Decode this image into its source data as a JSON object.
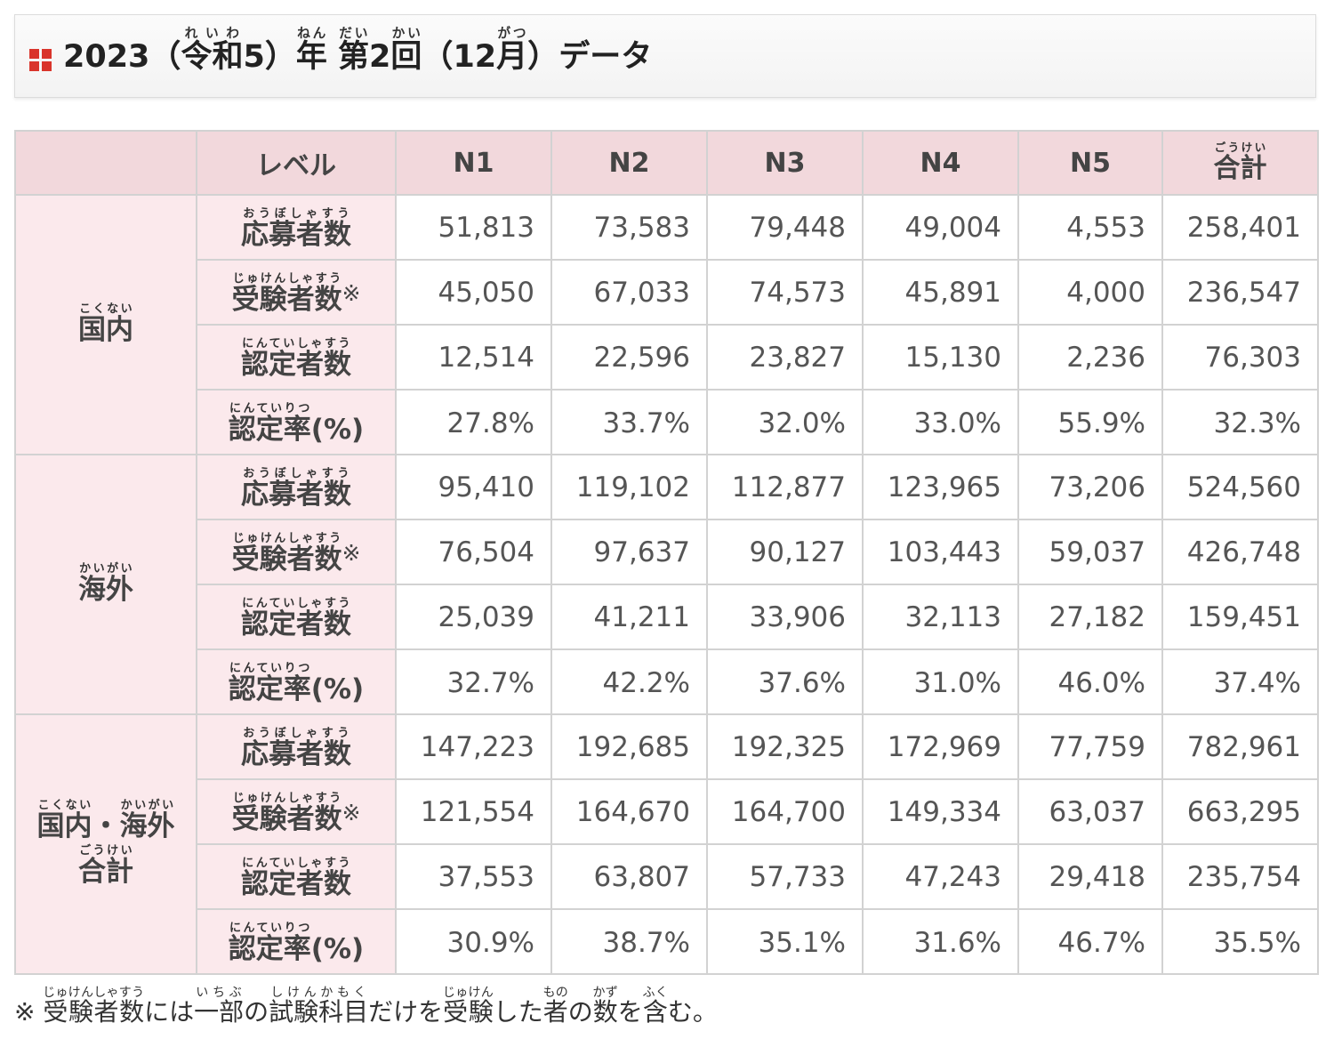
{
  "title": {
    "year": "2023",
    "era_open": "（",
    "era_name": "令和",
    "era_name_ruby": "れいわ",
    "era_num": "5",
    "era_close": "）",
    "nen": "年",
    "nen_ruby": "ねん",
    "space": " ",
    "dai": "第",
    "dai_ruby": "だい",
    "session_num": "2",
    "kai": "回",
    "kai_ruby": "かい",
    "month_open": "（",
    "month_num": "12",
    "month": "月",
    "month_ruby": "がつ",
    "month_close": "）",
    "suffix": "データ"
  },
  "header": {
    "level_label": "レベル",
    "levels": [
      "N1",
      "N2",
      "N3",
      "N4",
      "N5"
    ],
    "total_label": "合計",
    "total_ruby": "ごうけい"
  },
  "metrics": {
    "applicants": {
      "label": "応募者数",
      "ruby": "おうぼしゃすう"
    },
    "examinees": {
      "label": "受験者数",
      "ruby": "じゅけんしゃすう",
      "mark": "※"
    },
    "certified": {
      "label": "認定者数",
      "ruby": "にんていしゃすう"
    },
    "rate": {
      "label": "認定率",
      "ruby": "にんていりつ",
      "suffix": "(%)"
    }
  },
  "regions": [
    {
      "label": "国内",
      "ruby": "こくない",
      "rows": {
        "applicants": [
          "51,813",
          "73,583",
          "79,448",
          "49,004",
          "4,553",
          "258,401"
        ],
        "examinees": [
          "45,050",
          "67,033",
          "74,573",
          "45,891",
          "4,000",
          "236,547"
        ],
        "certified": [
          "12,514",
          "22,596",
          "23,827",
          "15,130",
          "2,236",
          "76,303"
        ],
        "rate": [
          "27.8%",
          "33.7%",
          "32.0%",
          "33.0%",
          "55.9%",
          "32.3%"
        ]
      }
    },
    {
      "label": "海外",
      "ruby": "かいがい",
      "rows": {
        "applicants": [
          "95,410",
          "119,102",
          "112,877",
          "123,965",
          "73,206",
          "524,560"
        ],
        "examinees": [
          "76,504",
          "97,637",
          "90,127",
          "103,443",
          "59,037",
          "426,748"
        ],
        "certified": [
          "25,039",
          "41,211",
          "33,906",
          "32,113",
          "27,182",
          "159,451"
        ],
        "rate": [
          "32.7%",
          "42.2%",
          "37.6%",
          "31.0%",
          "46.0%",
          "37.4%"
        ]
      }
    },
    {
      "label_part1": "国内",
      "ruby_part1": "こくない",
      "separator": "・",
      "label_part2": "海外",
      "ruby_part2": "かいがい",
      "label_line2": "合計",
      "ruby_line2": "ごうけい",
      "rows": {
        "applicants": [
          "147,223",
          "192,685",
          "192,325",
          "172,969",
          "77,759",
          "782,961"
        ],
        "examinees": [
          "121,554",
          "164,670",
          "164,700",
          "149,334",
          "63,037",
          "663,295"
        ],
        "certified": [
          "37,553",
          "63,807",
          "57,733",
          "47,243",
          "29,418",
          "235,754"
        ],
        "rate": [
          "30.9%",
          "38.7%",
          "35.1%",
          "31.6%",
          "46.7%",
          "35.5%"
        ]
      }
    }
  ],
  "footnote": {
    "mark": "※ ",
    "w1": "受験者数",
    "w1_ruby": "じゅけんしゃすう",
    "t1": "には",
    "w2": "一部",
    "w2_ruby": "いちぶ",
    "t2": "の",
    "w3": "試験科目",
    "w3_ruby": "しけんかもく",
    "t3": "だけを",
    "w4": "受験",
    "w4_ruby": "じゅけん",
    "t4": "した",
    "w5": "者",
    "w5_ruby": "もの",
    "t5": "の",
    "w6": "数",
    "w6_ruby": "かず",
    "t6": "を",
    "w7": "含",
    "w7_ruby": "ふく",
    "t7": "む。"
  }
}
